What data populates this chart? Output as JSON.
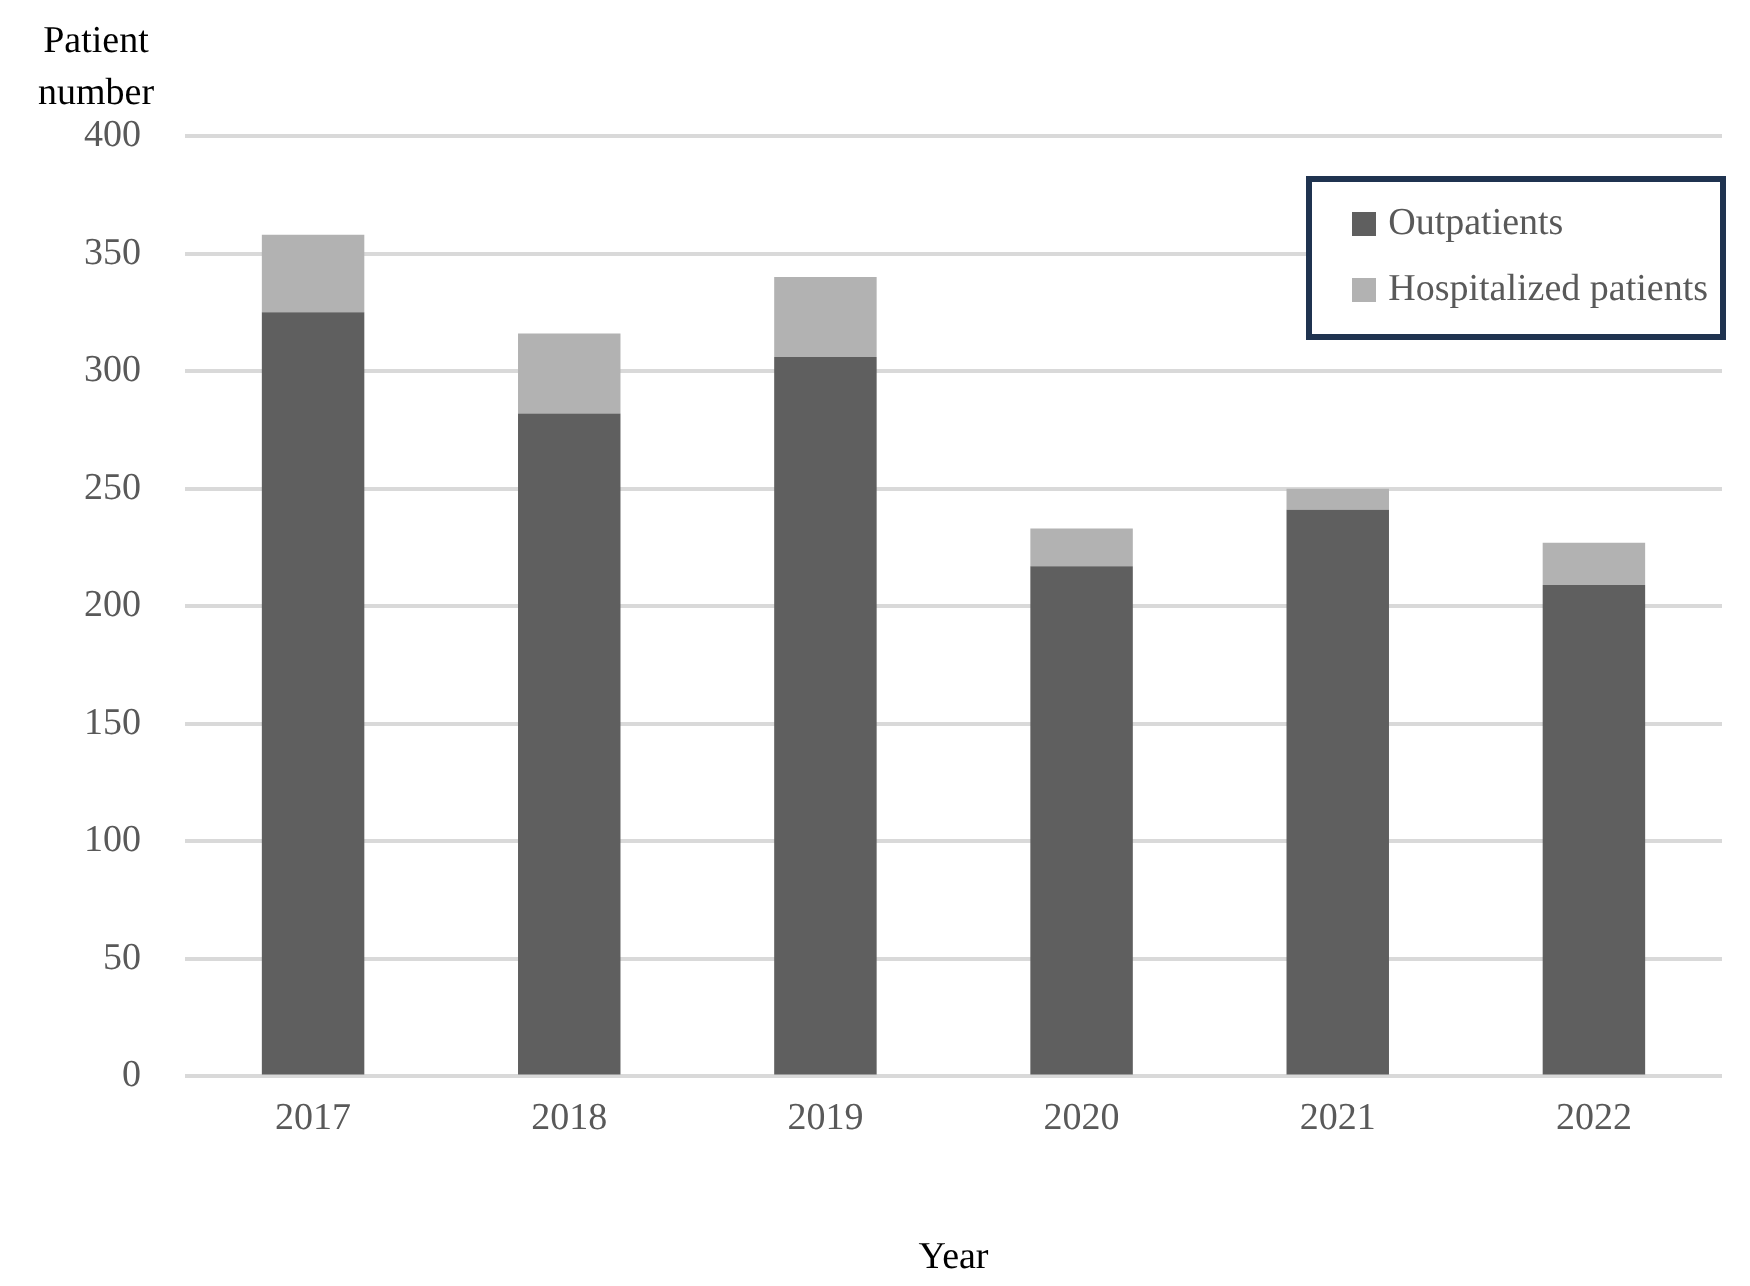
{
  "chart_data": {
    "type": "bar",
    "stacked": true,
    "xlabel": "Year",
    "ylabel": "Patient\nnumber",
    "categories": [
      "2017",
      "2018",
      "2019",
      "2020",
      "2021",
      "2022"
    ],
    "series": [
      {
        "name": "Outpatients",
        "color": "#5f5f5f",
        "values": [
          325,
          282,
          306,
          217,
          241,
          209
        ]
      },
      {
        "name": "Hospitalized patients",
        "color": "#b2b2b2",
        "values": [
          33,
          34,
          34,
          16,
          9,
          18
        ]
      }
    ],
    "ylim": [
      0,
      400
    ],
    "yticks": [
      0,
      50,
      100,
      150,
      200,
      250,
      300,
      350,
      400
    ],
    "grid": "y",
    "legend": "top right"
  }
}
